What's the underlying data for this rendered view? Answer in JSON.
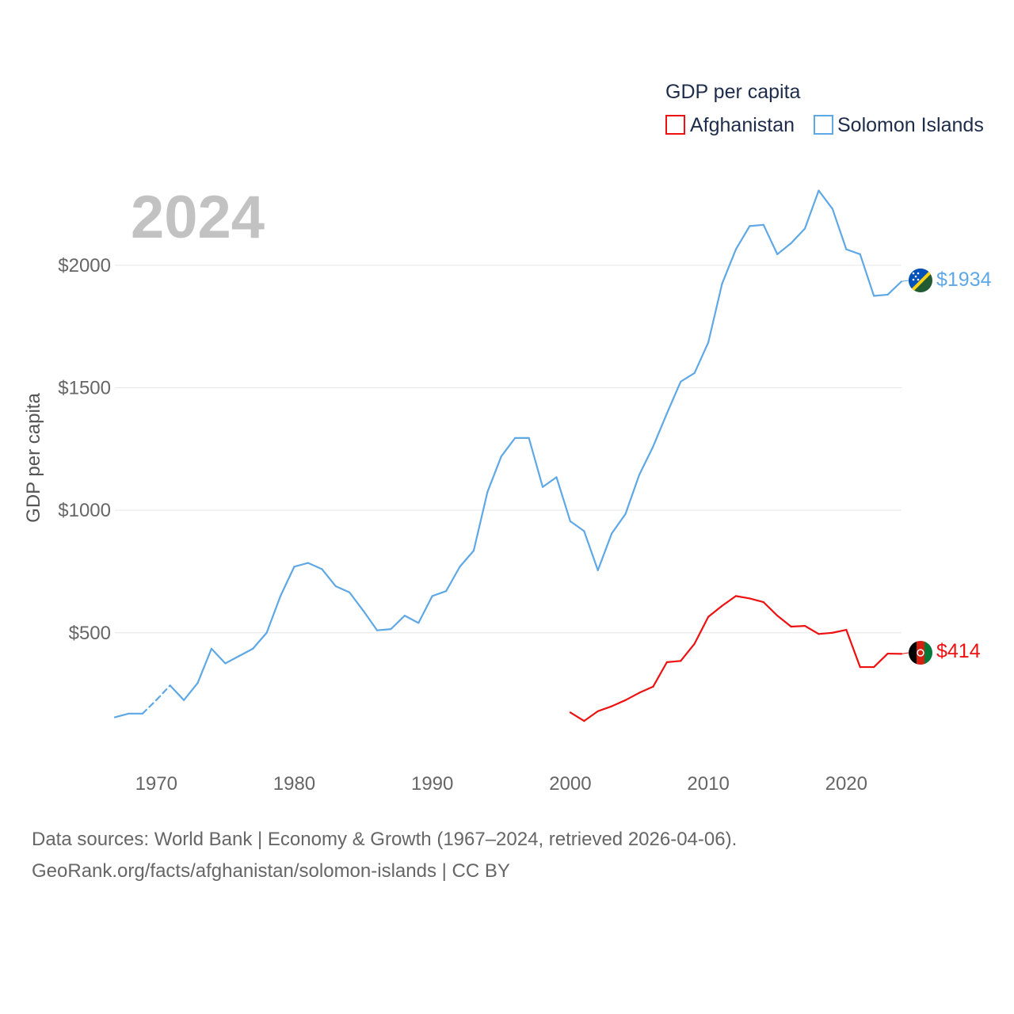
{
  "chart_data": {
    "type": "line",
    "current_year_label": "2024",
    "ylabel": "GDP per capita",
    "xlim": [
      1967,
      2024
    ],
    "ylim": [
      0,
      2400
    ],
    "y_ticks": [
      {
        "value": 500,
        "label": "$500"
      },
      {
        "value": 1000,
        "label": "$1000"
      },
      {
        "value": 1500,
        "label": "$1500"
      },
      {
        "value": 2000,
        "label": "$2000"
      }
    ],
    "x_ticks": [
      {
        "value": 1970,
        "label": "1970"
      },
      {
        "value": 1980,
        "label": "1980"
      },
      {
        "value": 1990,
        "label": "1990"
      },
      {
        "value": 2000,
        "label": "2000"
      },
      {
        "value": 2010,
        "label": "2010"
      },
      {
        "value": 2020,
        "label": "2020"
      }
    ],
    "legend": {
      "title": "GDP per capita",
      "placement": "top-right"
    },
    "series": [
      {
        "name": "Afghanistan",
        "color": "#ee1111",
        "end_label": "$414",
        "flag": "afghanistan-flag",
        "x": [
          2000,
          2001,
          2002,
          2003,
          2004,
          2005,
          2006,
          2007,
          2008,
          2009,
          2010,
          2011,
          2012,
          2013,
          2014,
          2015,
          2016,
          2017,
          2018,
          2019,
          2020,
          2021,
          2022,
          2023,
          2024
        ],
        "values": [
          175,
          140,
          180,
          200,
          225,
          255,
          280,
          380,
          385,
          455,
          565,
          610,
          650,
          640,
          625,
          570,
          525,
          528,
          495,
          500,
          512,
          360,
          360,
          415,
          414
        ],
        "dashed_x": []
      },
      {
        "name": "Solomon Islands",
        "color": "#5fa8e6",
        "end_label": "$1934",
        "flag": "solomon-islands-flag",
        "x": [
          1967,
          1968,
          1969,
          1970,
          1971,
          1972,
          1973,
          1974,
          1975,
          1976,
          1977,
          1978,
          1979,
          1980,
          1981,
          1982,
          1983,
          1984,
          1985,
          1986,
          1987,
          1988,
          1989,
          1990,
          1991,
          1992,
          1993,
          1994,
          1995,
          1996,
          1997,
          1998,
          1999,
          2000,
          2001,
          2002,
          2003,
          2004,
          2005,
          2006,
          2007,
          2008,
          2009,
          2010,
          2011,
          2012,
          2013,
          2014,
          2015,
          2016,
          2017,
          2018,
          2019,
          2020,
          2021,
          2022,
          2023,
          2024
        ],
        "values": [
          155,
          170,
          170,
          225,
          285,
          225,
          295,
          435,
          375,
          405,
          435,
          500,
          650,
          770,
          785,
          760,
          690,
          665,
          590,
          510,
          515,
          570,
          540,
          650,
          670,
          770,
          835,
          1075,
          1220,
          1295,
          1295,
          1095,
          1135,
          955,
          915,
          755,
          905,
          985,
          1145,
          1260,
          1395,
          1525,
          1560,
          1685,
          1925,
          2065,
          2160,
          2165,
          2045,
          2090,
          2150,
          2305,
          2230,
          2065,
          2045,
          1875,
          1880,
          1934
        ],
        "dashed_x": [
          1969,
          1970,
          1971
        ]
      }
    ]
  },
  "footer": {
    "line1": "Data sources: World Bank | Economy & Growth (1967–2024, retrieved 2026-04-06).",
    "line2": "GeoRank.org/facts/afghanistan/solomon-islands | CC BY"
  },
  "colors": {
    "grid": "#e6e6e6",
    "afghanistan": "#ee1111",
    "solomon": "#5fa8e6"
  }
}
